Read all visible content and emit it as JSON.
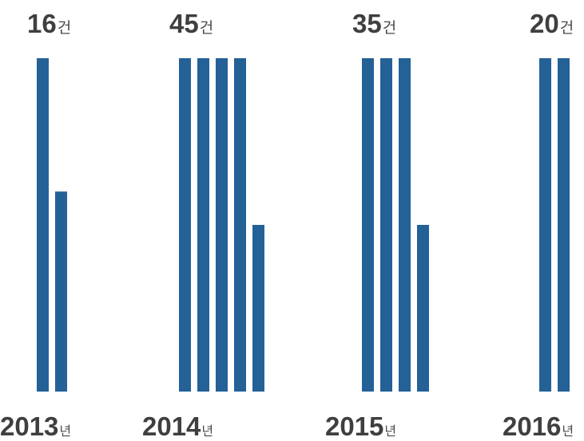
{
  "chart_data": {
    "type": "bar",
    "title": "",
    "xlabel": "",
    "ylabel": "",
    "unit_bar": 10,
    "bar_color": "#246197",
    "categories": [
      "2013",
      "2014",
      "2015",
      "2016"
    ],
    "values": [
      16,
      45,
      35,
      20
    ],
    "count_labels": [
      {
        "number": "16",
        "unit": "건"
      },
      {
        "number": "45",
        "unit": "건"
      },
      {
        "number": "35",
        "unit": "건"
      },
      {
        "number": "20",
        "unit": "건"
      }
    ],
    "year_labels": [
      {
        "number": "2013",
        "unit": "년"
      },
      {
        "number": "2014",
        "unit": "년"
      },
      {
        "number": "2015",
        "unit": "년"
      },
      {
        "number": "2016",
        "unit": "년"
      }
    ]
  }
}
